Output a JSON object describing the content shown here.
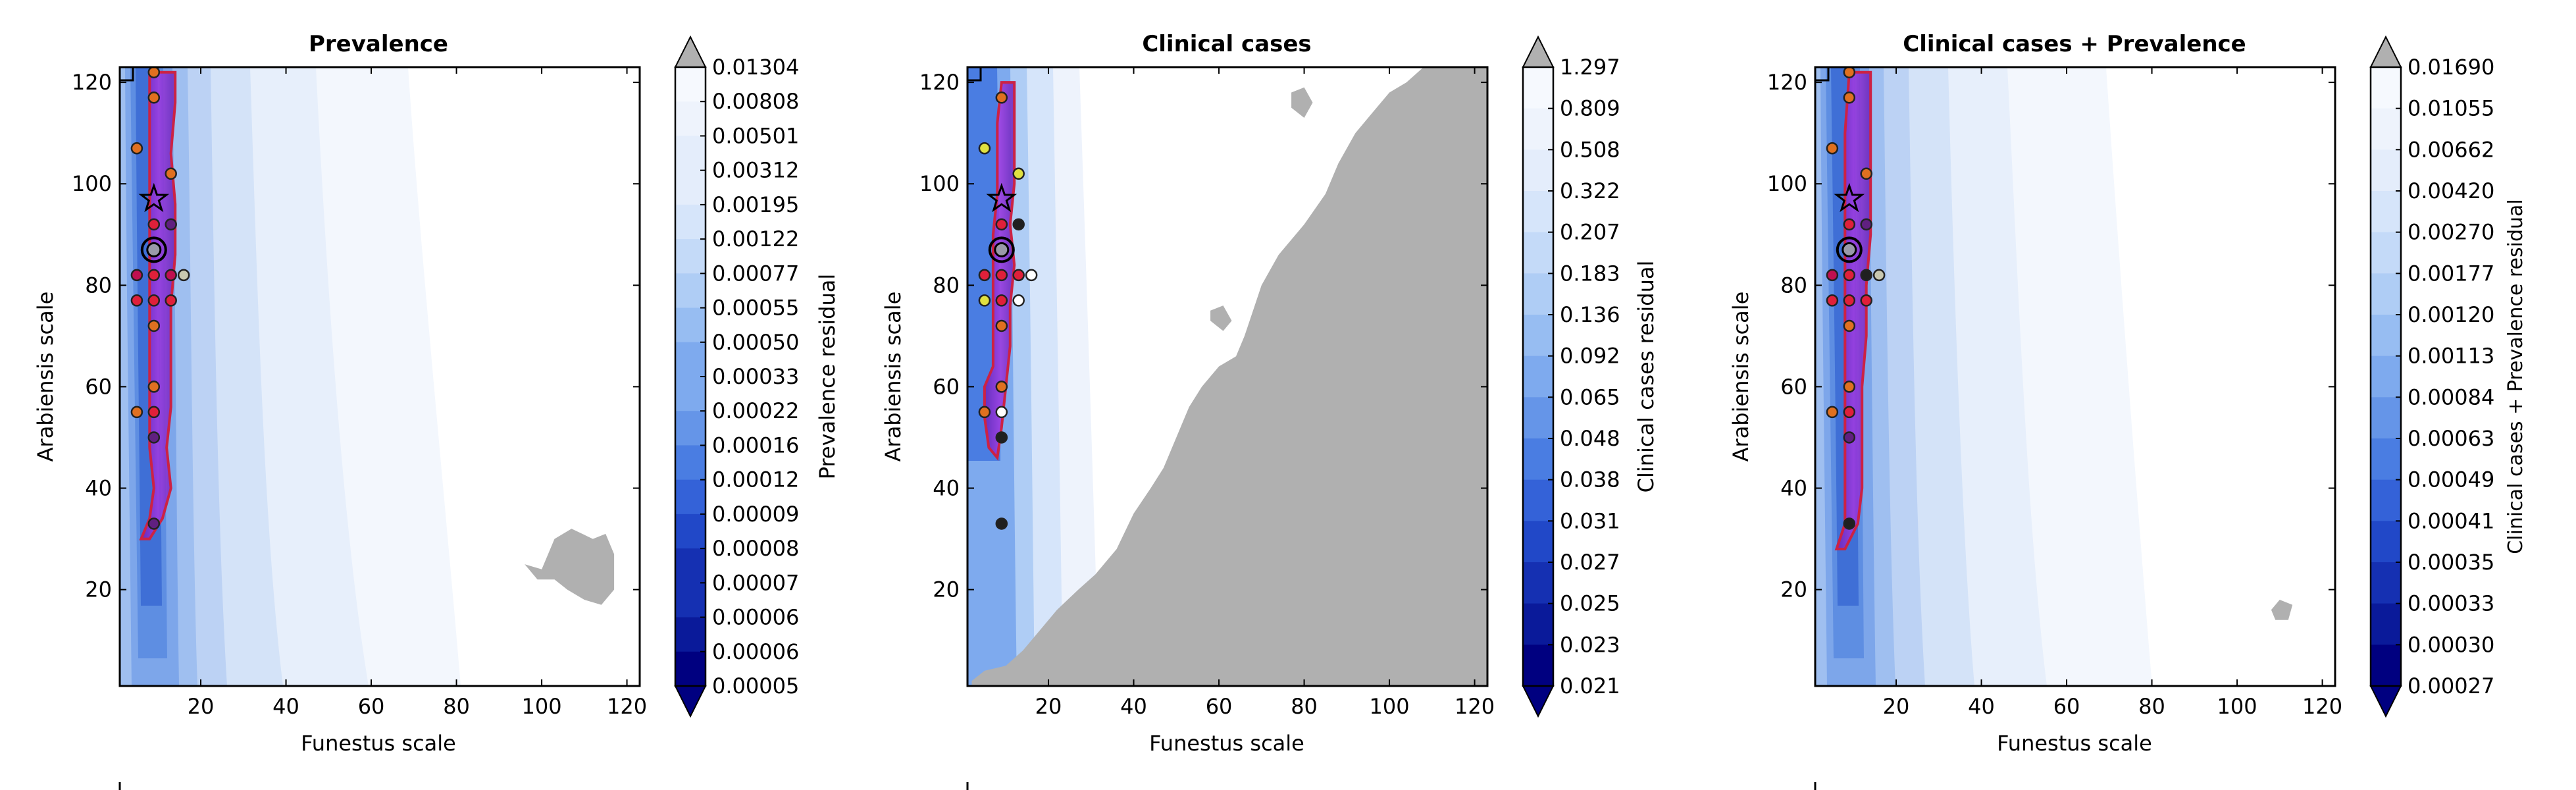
{
  "chart_data": [
    {
      "type": "heatmap",
      "title": "Prevalence",
      "xlabel": "Funestus scale",
      "ylabel": "Arabiensis scale",
      "xlim": [
        1,
        123
      ],
      "ylim": [
        1,
        123
      ],
      "x_ticks": [
        "20",
        "40",
        "60",
        "80",
        "100",
        "120"
      ],
      "y_ticks": [
        "20",
        "40",
        "60",
        "80",
        "100",
        "120"
      ],
      "colorbar_label": "Prevalence residual",
      "colorbar_ticks": [
        "0.01304",
        "0.00808",
        "0.00501",
        "0.00312",
        "0.00195",
        "0.00122",
        "0.00077",
        "0.00055",
        "0.00050",
        "0.00033",
        "0.00022",
        "0.00016",
        "0.00012",
        "0.00009",
        "0.00008",
        "0.00007",
        "0.00006",
        "0.00006",
        "0.00005"
      ],
      "grey_regions": [
        {
          "points": [
            [
              96,
              25
            ],
            [
              100,
              24
            ],
            [
              103,
              30
            ],
            [
              107,
              32
            ],
            [
              112,
              30
            ],
            [
              115,
              31
            ],
            [
              117,
              27
            ],
            [
              117,
              20
            ],
            [
              114,
              17
            ],
            [
              110,
              18
            ],
            [
              106,
              20
            ],
            [
              103,
              22
            ],
            [
              99,
              22
            ]
          ]
        }
      ],
      "band": {
        "points": [
          [
            6,
            30
          ],
          [
            8,
            34
          ],
          [
            9,
            40
          ],
          [
            8,
            48
          ],
          [
            8,
            56
          ],
          [
            8,
            66
          ],
          [
            8,
            76
          ],
          [
            8,
            86
          ],
          [
            8,
            96
          ],
          [
            8,
            106
          ],
          [
            8,
            116
          ],
          [
            8,
            122
          ],
          [
            14,
            122
          ],
          [
            14,
            116
          ],
          [
            13,
            106
          ],
          [
            14,
            96
          ],
          [
            14,
            86
          ],
          [
            13,
            76
          ],
          [
            13,
            66
          ],
          [
            13,
            56
          ],
          [
            12,
            48
          ],
          [
            13,
            40
          ],
          [
            11,
            34
          ],
          [
            8,
            30
          ]
        ]
      },
      "best_marker": {
        "x": 9,
        "y": 87
      },
      "star_marker": {
        "x": 9,
        "y": 97
      },
      "points": [
        {
          "x": 9,
          "y": 122,
          "color": "#e07020"
        },
        {
          "x": 9,
          "y": 117,
          "color": "#e07020"
        },
        {
          "x": 5,
          "y": 107,
          "color": "#e07020"
        },
        {
          "x": 13,
          "y": 102,
          "color": "#e07020"
        },
        {
          "x": 9,
          "y": 92,
          "color": "#e0203a"
        },
        {
          "x": 13,
          "y": 92,
          "color": "#602080"
        },
        {
          "x": 5,
          "y": 82,
          "color": "#c01050"
        },
        {
          "x": 9,
          "y": 82,
          "color": "#e0203a"
        },
        {
          "x": 13,
          "y": 82,
          "color": "#c01050"
        },
        {
          "x": 16,
          "y": 82,
          "color": "#c8c8b0"
        },
        {
          "x": 5,
          "y": 77,
          "color": "#e0203a"
        },
        {
          "x": 9,
          "y": 77,
          "color": "#e0203a"
        },
        {
          "x": 13,
          "y": 77,
          "color": "#e0203a"
        },
        {
          "x": 9,
          "y": 72,
          "color": "#e07020"
        },
        {
          "x": 9,
          "y": 60,
          "color": "#e07020"
        },
        {
          "x": 5,
          "y": 55,
          "color": "#e07020"
        },
        {
          "x": 9,
          "y": 55,
          "color": "#e0203a"
        },
        {
          "x": 9,
          "y": 50,
          "color": "#602080"
        },
        {
          "x": 9,
          "y": 33,
          "color": "#602080"
        }
      ]
    },
    {
      "type": "heatmap",
      "title": "Clinical cases",
      "xlabel": "Funestus scale",
      "ylabel": "Arabiensis scale",
      "xlim": [
        1,
        123
      ],
      "ylim": [
        1,
        123
      ],
      "x_ticks": [
        "20",
        "40",
        "60",
        "80",
        "100",
        "120"
      ],
      "y_ticks": [
        "20",
        "40",
        "60",
        "80",
        "100",
        "120"
      ],
      "colorbar_label": "Clinical cases residual",
      "colorbar_ticks": [
        "1.297",
        "0.809",
        "0.508",
        "0.322",
        "0.207",
        "0.183",
        "0.136",
        "0.092",
        "0.065",
        "0.048",
        "0.038",
        "0.031",
        "0.027",
        "0.025",
        "0.023",
        "0.021"
      ],
      "grey_regions": [
        {
          "points": [
            [
              2,
              2
            ],
            [
              5,
              4
            ],
            [
              10,
              5
            ],
            [
              14,
              8
            ],
            [
              18,
              12
            ],
            [
              22,
              16
            ],
            [
              27,
              20
            ],
            [
              31,
              23
            ],
            [
              36,
              28
            ],
            [
              40,
              35
            ],
            [
              44,
              40
            ],
            [
              47,
              44
            ],
            [
              50,
              50
            ],
            [
              53,
              56
            ],
            [
              56,
              60
            ],
            [
              60,
              64
            ],
            [
              64,
              66
            ],
            [
              66,
              70
            ],
            [
              68,
              75
            ],
            [
              70,
              80
            ],
            [
              74,
              86
            ],
            [
              80,
              92
            ],
            [
              85,
              98
            ],
            [
              88,
              104
            ],
            [
              92,
              110
            ],
            [
              96,
              114
            ],
            [
              100,
              118
            ],
            [
              104,
              120
            ],
            [
              108,
              123
            ],
            [
              123,
              123
            ],
            [
              123,
              1
            ],
            [
              2,
              1
            ]
          ]
        },
        {
          "points": [
            [
              77,
              115
            ],
            [
              80,
              113
            ],
            [
              82,
              116
            ],
            [
              80,
              119
            ],
            [
              77,
              118
            ]
          ]
        },
        {
          "points": [
            [
              85,
              93
            ],
            [
              88,
              92
            ],
            [
              89,
              95
            ],
            [
              86,
              96
            ]
          ]
        },
        {
          "points": [
            [
              58,
              73
            ],
            [
              61,
              71
            ],
            [
              63,
              73
            ],
            [
              61,
              76
            ],
            [
              58,
              75
            ]
          ]
        }
      ],
      "band": {
        "points": [
          [
            5,
            60
          ],
          [
            7,
            64
          ],
          [
            7,
            70
          ],
          [
            7,
            80
          ],
          [
            7,
            90
          ],
          [
            8,
            98
          ],
          [
            8,
            112
          ],
          [
            9,
            120
          ],
          [
            12,
            120
          ],
          [
            12,
            110
          ],
          [
            12,
            100
          ],
          [
            11,
            92
          ],
          [
            12,
            84
          ],
          [
            11,
            76
          ],
          [
            11,
            68
          ],
          [
            10,
            60
          ],
          [
            9,
            52
          ],
          [
            8,
            46
          ],
          [
            6,
            48
          ],
          [
            5,
            54
          ]
        ]
      },
      "best_marker": {
        "x": 9,
        "y": 87
      },
      "star_marker": {
        "x": 9,
        "y": 97
      },
      "points": [
        {
          "x": 9,
          "y": 117,
          "color": "#e07020"
        },
        {
          "x": 5,
          "y": 107,
          "color": "#e0e040"
        },
        {
          "x": 13,
          "y": 102,
          "color": "#e0e040"
        },
        {
          "x": 9,
          "y": 92,
          "color": "#e0203a"
        },
        {
          "x": 13,
          "y": 92,
          "color": "#202020"
        },
        {
          "x": 5,
          "y": 82,
          "color": "#e0203a"
        },
        {
          "x": 9,
          "y": 82,
          "color": "#e0203a"
        },
        {
          "x": 13,
          "y": 82,
          "color": "#e0203a"
        },
        {
          "x": 16,
          "y": 82,
          "color": "#ffffff"
        },
        {
          "x": 5,
          "y": 77,
          "color": "#e0e040"
        },
        {
          "x": 9,
          "y": 77,
          "color": "#e0203a"
        },
        {
          "x": 13,
          "y": 77,
          "color": "#ffffff"
        },
        {
          "x": 9,
          "y": 72,
          "color": "#e07020"
        },
        {
          "x": 9,
          "y": 60,
          "color": "#e07020"
        },
        {
          "x": 5,
          "y": 55,
          "color": "#e07020"
        },
        {
          "x": 9,
          "y": 55,
          "color": "#ffffff"
        },
        {
          "x": 9,
          "y": 50,
          "color": "#202020"
        },
        {
          "x": 9,
          "y": 33,
          "color": "#202020"
        }
      ]
    },
    {
      "type": "heatmap",
      "title": "Clinical cases + Prevalence",
      "xlabel": "Funestus scale",
      "ylabel": "Arabiensis scale",
      "xlim": [
        1,
        123
      ],
      "ylim": [
        1,
        123
      ],
      "x_ticks": [
        "20",
        "40",
        "60",
        "80",
        "100",
        "120"
      ],
      "y_ticks": [
        "20",
        "40",
        "60",
        "80",
        "100",
        "120"
      ],
      "colorbar_label": "Clinical cases + Prevalence residual",
      "colorbar_ticks": [
        "0.01690",
        "0.01055",
        "0.00662",
        "0.00420",
        "0.00270",
        "0.00177",
        "0.00120",
        "0.00113",
        "0.00084",
        "0.00063",
        "0.00049",
        "0.00041",
        "0.00035",
        "0.00033",
        "0.00030",
        "0.00027"
      ],
      "grey_regions": [
        {
          "points": [
            [
              109,
              14
            ],
            [
              112,
              14
            ],
            [
              113,
              17
            ],
            [
              110,
              18
            ],
            [
              108,
              16
            ]
          ]
        }
      ],
      "band": {
        "points": [
          [
            6,
            28
          ],
          [
            8,
            33
          ],
          [
            8,
            40
          ],
          [
            8,
            50
          ],
          [
            8,
            60
          ],
          [
            8,
            70
          ],
          [
            8,
            80
          ],
          [
            8,
            90
          ],
          [
            8,
            100
          ],
          [
            8,
            110
          ],
          [
            9,
            122
          ],
          [
            14,
            122
          ],
          [
            14,
            110
          ],
          [
            14,
            100
          ],
          [
            14,
            90
          ],
          [
            13,
            80
          ],
          [
            13,
            70
          ],
          [
            12,
            60
          ],
          [
            12,
            50
          ],
          [
            12,
            40
          ],
          [
            11,
            33
          ],
          [
            8,
            28
          ]
        ]
      },
      "best_marker": {
        "x": 9,
        "y": 87
      },
      "star_marker": {
        "x": 9,
        "y": 97
      },
      "points": [
        {
          "x": 9,
          "y": 122,
          "color": "#e07020"
        },
        {
          "x": 9,
          "y": 117,
          "color": "#e07020"
        },
        {
          "x": 5,
          "y": 107,
          "color": "#e07020"
        },
        {
          "x": 13,
          "y": 102,
          "color": "#e07020"
        },
        {
          "x": 9,
          "y": 92,
          "color": "#e0203a"
        },
        {
          "x": 13,
          "y": 92,
          "color": "#602080"
        },
        {
          "x": 5,
          "y": 82,
          "color": "#c01050"
        },
        {
          "x": 9,
          "y": 82,
          "color": "#e0203a"
        },
        {
          "x": 13,
          "y": 82,
          "color": "#202020"
        },
        {
          "x": 16,
          "y": 82,
          "color": "#c8c8b0"
        },
        {
          "x": 5,
          "y": 77,
          "color": "#e0203a"
        },
        {
          "x": 9,
          "y": 77,
          "color": "#e0203a"
        },
        {
          "x": 13,
          "y": 77,
          "color": "#e0203a"
        },
        {
          "x": 9,
          "y": 72,
          "color": "#e07020"
        },
        {
          "x": 9,
          "y": 60,
          "color": "#e07020"
        },
        {
          "x": 5,
          "y": 55,
          "color": "#e07020"
        },
        {
          "x": 9,
          "y": 55,
          "color": "#e0203a"
        },
        {
          "x": 9,
          "y": 50,
          "color": "#602080"
        },
        {
          "x": 9,
          "y": 33,
          "color": "#202020"
        }
      ]
    }
  ],
  "colors": {
    "contour_scale": [
      "#000080",
      "#0a1a9a",
      "#1530b2",
      "#2148c8",
      "#3462d8",
      "#4a7de2",
      "#6595e8",
      "#7eaaee",
      "#97bdf2",
      "#afcdf5",
      "#c4daf8",
      "#d6e5fa",
      "#e4edfb",
      "#eef3fc",
      "#f6f9fe"
    ],
    "extend_high": "#b0b0b0",
    "grey": "#b0b0b0",
    "band_fill": "#9030c8",
    "band_edge": "#cc2244"
  }
}
